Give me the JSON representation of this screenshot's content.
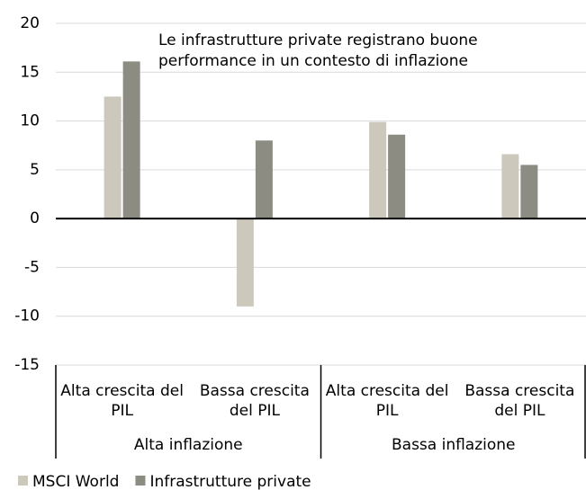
{
  "chart_data": {
    "type": "bar",
    "annotation": [
      "Le infrastrutture private registrano buone",
      "performance in un contesto di inflazione"
    ],
    "annotation_color": "#e2001a",
    "categories": [
      [
        "Alta crescita del",
        "PIL"
      ],
      [
        "Bassa crescita",
        "del PIL"
      ],
      [
        "Alta crescita del",
        "PIL"
      ],
      [
        "Bassa crescita",
        "del PIL"
      ]
    ],
    "groups": [
      "Alta inflazione",
      "Bassa inflazione"
    ],
    "series": [
      {
        "name": "MSCI World",
        "color": "#ccc9bc",
        "values": [
          12.5,
          -9,
          9.9,
          6.6
        ]
      },
      {
        "name": "Infrastrutture private",
        "color": "#8c8c82",
        "values": [
          16.1,
          8.0,
          8.6,
          5.5
        ]
      }
    ],
    "ylim": [
      -15,
      20
    ],
    "yticks": [
      -15,
      -10,
      -5,
      0,
      5,
      10,
      15,
      20
    ],
    "grid": true
  }
}
